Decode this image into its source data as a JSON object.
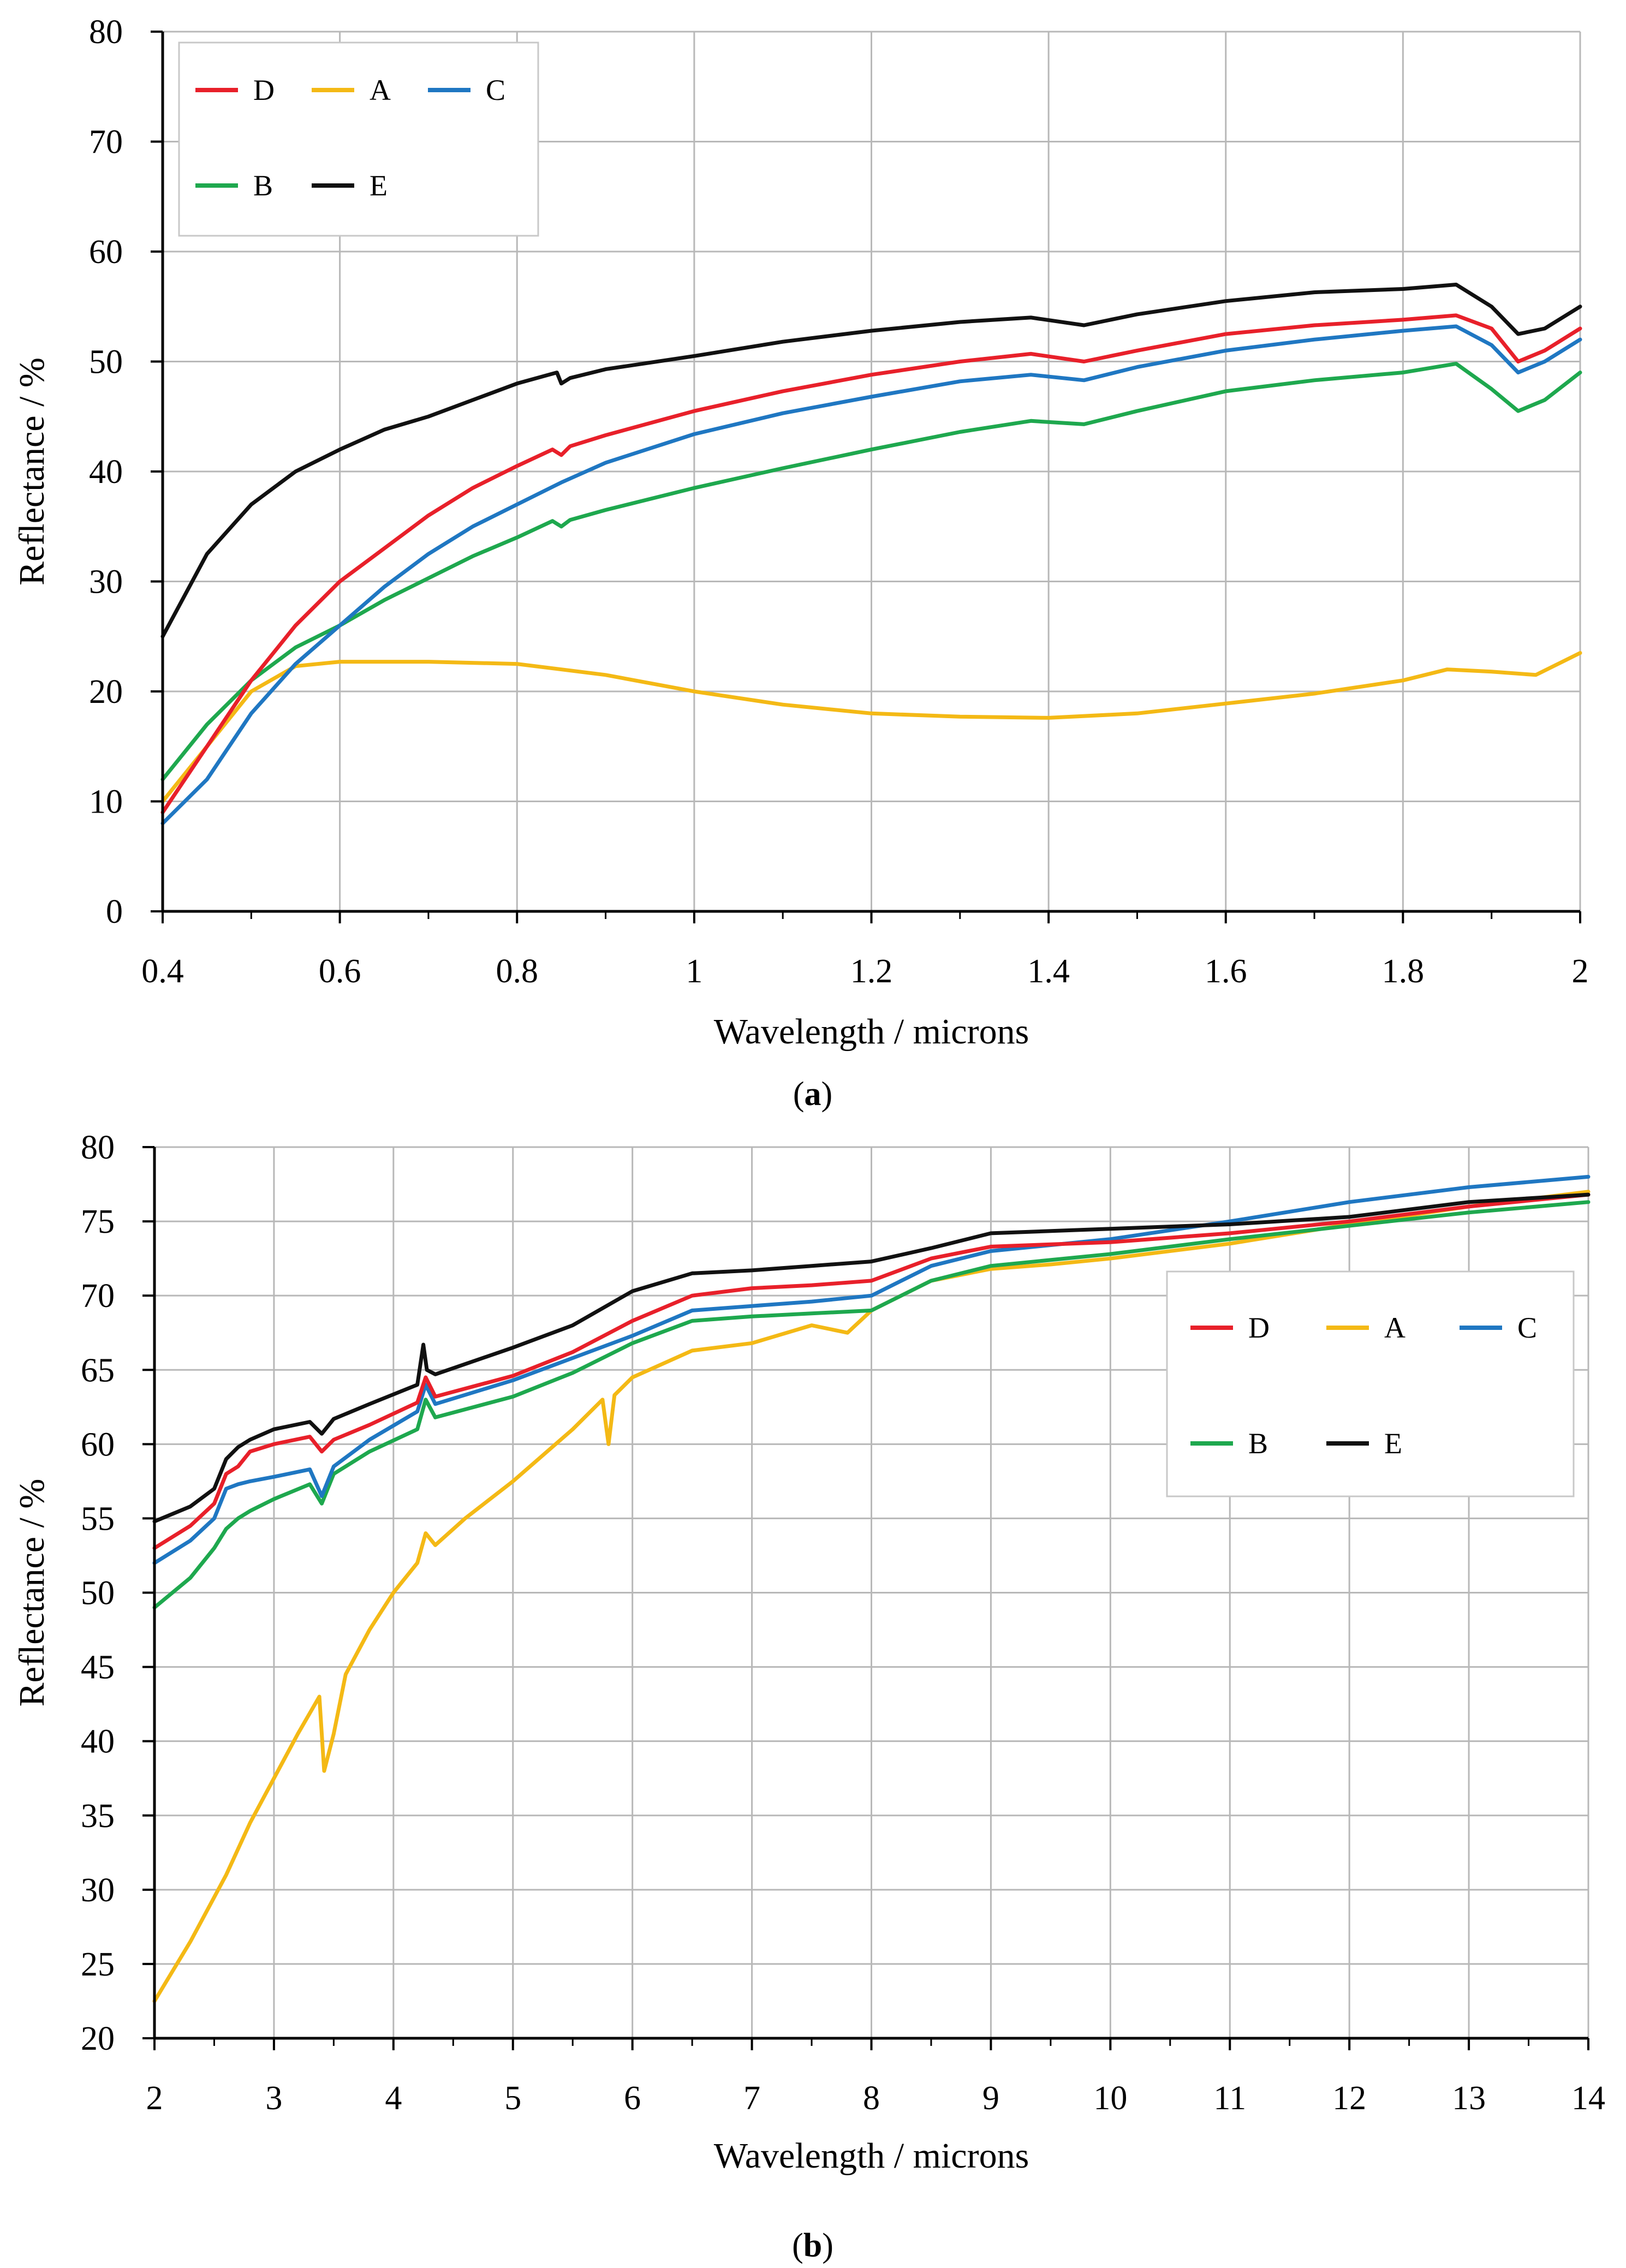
{
  "figure": {
    "caption_a": {
      "open": "(",
      "letter": "a",
      "close": ")"
    },
    "caption_b": {
      "open": "(",
      "letter": "b",
      "close": ")"
    }
  },
  "chart_data": [
    {
      "id": "a",
      "type": "line",
      "xlabel": "Wavelength / microns",
      "ylabel": "Reflectance / %",
      "xlim": [
        0.4,
        2.0
      ],
      "ylim": [
        0,
        80
      ],
      "xticks": [
        0.4,
        0.6,
        0.8,
        1,
        1.2,
        1.4,
        1.6,
        1.8,
        2
      ],
      "xtick_labels": [
        "0.4",
        "0.6",
        "0.8",
        "1",
        "1.2",
        "1.4",
        "1.6",
        "1.8",
        "2"
      ],
      "yticks": [
        0,
        10,
        20,
        30,
        40,
        50,
        60,
        70,
        80
      ],
      "ytick_labels": [
        "0",
        "10",
        "20",
        "30",
        "40",
        "50",
        "60",
        "70",
        "80"
      ],
      "grid": true,
      "legend_placement": "top-left",
      "legend_rows": [
        [
          "D",
          "A",
          "C"
        ],
        [
          "B",
          "E"
        ]
      ],
      "series": [
        {
          "name": "D",
          "color": "#e8202a",
          "x": [
            0.4,
            0.45,
            0.5,
            0.55,
            0.6,
            0.65,
            0.7,
            0.75,
            0.8,
            0.84,
            0.85,
            0.86,
            0.9,
            1.0,
            1.1,
            1.2,
            1.3,
            1.38,
            1.44,
            1.5,
            1.6,
            1.7,
            1.8,
            1.86,
            1.9,
            1.93,
            1.96,
            2.0
          ],
          "y": [
            9,
            15,
            21,
            26,
            30,
            33,
            36,
            38.5,
            40.5,
            42,
            41.5,
            42.3,
            43.3,
            45.5,
            47.3,
            48.8,
            50,
            50.7,
            50,
            51,
            52.5,
            53.3,
            53.8,
            54.2,
            53,
            50,
            51,
            53
          ]
        },
        {
          "name": "A",
          "color": "#f4b915",
          "x": [
            0.4,
            0.45,
            0.5,
            0.55,
            0.6,
            0.7,
            0.8,
            0.9,
            1.0,
            1.1,
            1.2,
            1.3,
            1.4,
            1.5,
            1.6,
            1.7,
            1.8,
            1.85,
            1.9,
            1.95,
            2.0
          ],
          "y": [
            10,
            15,
            20,
            22.3,
            22.7,
            22.7,
            22.5,
            21.5,
            20,
            18.8,
            18,
            17.7,
            17.6,
            18,
            18.9,
            19.8,
            21,
            22,
            21.8,
            21.5,
            23.5
          ]
        },
        {
          "name": "C",
          "color": "#1f77c2",
          "x": [
            0.4,
            0.45,
            0.5,
            0.55,
            0.6,
            0.65,
            0.7,
            0.75,
            0.8,
            0.85,
            0.9,
            1.0,
            1.1,
            1.2,
            1.3,
            1.38,
            1.44,
            1.5,
            1.6,
            1.7,
            1.8,
            1.86,
            1.9,
            1.93,
            1.96,
            2.0
          ],
          "y": [
            8,
            12,
            18,
            22.5,
            26,
            29.5,
            32.5,
            35,
            37,
            39,
            40.8,
            43.4,
            45.3,
            46.8,
            48.2,
            48.8,
            48.3,
            49.5,
            51,
            52,
            52.8,
            53.2,
            51.5,
            49,
            50,
            52
          ]
        },
        {
          "name": "B",
          "color": "#1ea84e",
          "x": [
            0.4,
            0.45,
            0.5,
            0.55,
            0.6,
            0.65,
            0.7,
            0.75,
            0.8,
            0.84,
            0.85,
            0.86,
            0.9,
            1.0,
            1.1,
            1.2,
            1.3,
            1.38,
            1.44,
            1.5,
            1.6,
            1.7,
            1.8,
            1.86,
            1.9,
            1.93,
            1.96,
            2.0
          ],
          "y": [
            12,
            17,
            21,
            24,
            26,
            28.3,
            30.3,
            32.3,
            34,
            35.5,
            35,
            35.6,
            36.5,
            38.5,
            40.3,
            42,
            43.6,
            44.6,
            44.3,
            45.5,
            47.3,
            48.3,
            49,
            49.8,
            47.5,
            45.5,
            46.5,
            49
          ]
        },
        {
          "name": "E",
          "color": "#111111",
          "x": [
            0.4,
            0.45,
            0.5,
            0.55,
            0.6,
            0.65,
            0.7,
            0.75,
            0.8,
            0.845,
            0.85,
            0.86,
            0.9,
            1.0,
            1.1,
            1.2,
            1.3,
            1.38,
            1.44,
            1.5,
            1.6,
            1.7,
            1.8,
            1.86,
            1.9,
            1.93,
            1.96,
            2.0
          ],
          "y": [
            25,
            32.5,
            37,
            40,
            42,
            43.8,
            45,
            46.5,
            48,
            49,
            48,
            48.5,
            49.3,
            50.5,
            51.8,
            52.8,
            53.6,
            54,
            53.3,
            54.3,
            55.5,
            56.3,
            56.6,
            57,
            55,
            52.5,
            53,
            55
          ]
        }
      ]
    },
    {
      "id": "b",
      "type": "line",
      "xlabel": "Wavelength / microns",
      "ylabel": "Reflectance / %",
      "xlim": [
        2,
        14
      ],
      "ylim": [
        20,
        80
      ],
      "xticks": [
        2,
        3,
        4,
        5,
        6,
        7,
        8,
        9,
        10,
        11,
        12,
        13,
        14
      ],
      "xtick_labels": [
        "2",
        "3",
        "4",
        "5",
        "6",
        "7",
        "8",
        "9",
        "10",
        "11",
        "12",
        "13",
        "14"
      ],
      "yticks": [
        20,
        25,
        30,
        35,
        40,
        45,
        50,
        55,
        60,
        65,
        70,
        75,
        80
      ],
      "ytick_labels": [
        "20",
        "25",
        "30",
        "35",
        "40",
        "45",
        "50",
        "55",
        "60",
        "65",
        "70",
        "75",
        "80"
      ],
      "grid": true,
      "legend_placement": "right",
      "legend_rows": [
        [
          "D",
          "A",
          "C"
        ],
        [
          "B",
          "E"
        ]
      ],
      "series": [
        {
          "name": "D",
          "color": "#e8202a",
          "x": [
            2,
            2.3,
            2.5,
            2.6,
            2.7,
            2.8,
            3.0,
            3.3,
            3.4,
            3.5,
            3.8,
            4.2,
            4.27,
            4.35,
            5.0,
            5.5,
            6.0,
            6.5,
            7.0,
            7.5,
            8.0,
            8.5,
            9.0,
            10.0,
            11.0,
            12.0,
            13.0,
            14.0
          ],
          "y": [
            53,
            54.5,
            56,
            58,
            58.5,
            59.5,
            60,
            60.5,
            59.5,
            60.3,
            61.3,
            62.8,
            64.5,
            63.2,
            64.6,
            66.2,
            68.3,
            70,
            70.5,
            70.7,
            71,
            72.5,
            73.3,
            73.6,
            74.2,
            75,
            76,
            76.8
          ]
        },
        {
          "name": "A",
          "color": "#f4b915",
          "x": [
            2,
            2.3,
            2.6,
            2.8,
            3.0,
            3.2,
            3.38,
            3.42,
            3.5,
            3.6,
            3.8,
            4.0,
            4.2,
            4.27,
            4.35,
            4.6,
            5.0,
            5.5,
            5.75,
            5.8,
            5.85,
            6.0,
            6.5,
            7.0,
            7.5,
            7.8,
            8.0,
            8.5,
            9.0,
            9.5,
            10.0,
            11.0,
            12.0,
            13.0,
            14.0
          ],
          "y": [
            22.5,
            26.5,
            31,
            34.5,
            37.5,
            40.5,
            43,
            38,
            40.5,
            44.5,
            47.5,
            50,
            52,
            54,
            53.2,
            55,
            57.5,
            61,
            63,
            60,
            63.3,
            64.5,
            66.3,
            66.8,
            68,
            67.5,
            69,
            71,
            71.8,
            72.1,
            72.5,
            73.5,
            74.8,
            76,
            77
          ]
        },
        {
          "name": "C",
          "color": "#1f77c2",
          "x": [
            2,
            2.3,
            2.5,
            2.6,
            2.7,
            2.8,
            3.0,
            3.3,
            3.4,
            3.5,
            3.8,
            4.2,
            4.27,
            4.35,
            5.0,
            5.5,
            6.0,
            6.5,
            7.0,
            7.5,
            8.0,
            8.5,
            9.0,
            10.0,
            11.0,
            12.0,
            13.0,
            14.0
          ],
          "y": [
            52,
            53.5,
            55,
            57,
            57.3,
            57.5,
            57.8,
            58.3,
            56.5,
            58.5,
            60.3,
            62.2,
            64,
            62.7,
            64.3,
            65.8,
            67.3,
            69,
            69.3,
            69.6,
            70,
            72,
            73,
            73.8,
            75,
            76.3,
            77.3,
            78
          ]
        },
        {
          "name": "B",
          "color": "#1ea84e",
          "x": [
            2,
            2.3,
            2.5,
            2.6,
            2.7,
            2.8,
            3.0,
            3.3,
            3.4,
            3.5,
            3.8,
            4.2,
            4.27,
            4.35,
            5.0,
            5.5,
            6.0,
            6.5,
            7.0,
            7.5,
            8.0,
            8.5,
            9.0,
            10.0,
            11.0,
            12.0,
            13.0,
            14.0
          ],
          "y": [
            49,
            51,
            53,
            54.3,
            55,
            55.5,
            56.3,
            57.3,
            56,
            58,
            59.5,
            61,
            63,
            61.8,
            63.2,
            64.8,
            66.8,
            68.3,
            68.6,
            68.8,
            69,
            71,
            72,
            72.8,
            73.8,
            74.7,
            75.6,
            76.3
          ]
        },
        {
          "name": "E",
          "color": "#111111",
          "x": [
            2,
            2.3,
            2.5,
            2.6,
            2.7,
            2.8,
            3.0,
            3.3,
            3.4,
            3.5,
            3.8,
            4.2,
            4.25,
            4.28,
            4.35,
            5.0,
            5.5,
            6.0,
            6.5,
            7.0,
            7.5,
            8.0,
            8.5,
            9.0,
            10.0,
            11.0,
            12.0,
            13.0,
            14.0
          ],
          "y": [
            54.8,
            55.8,
            57,
            59,
            59.8,
            60.3,
            61,
            61.5,
            60.7,
            61.7,
            62.7,
            64,
            66.7,
            65,
            64.7,
            66.5,
            68,
            70.3,
            71.5,
            71.7,
            72,
            72.3,
            73.2,
            74.2,
            74.5,
            74.8,
            75.3,
            76.3,
            76.8
          ]
        }
      ]
    }
  ]
}
